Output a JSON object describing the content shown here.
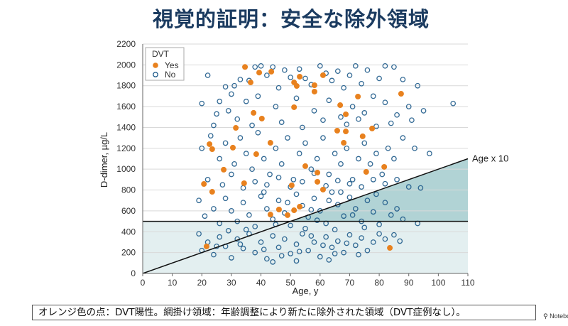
{
  "slide": {
    "title": "視覚的証明：安全な除外領域",
    "caption": "オレンジ色の点：DVT陽性。網掛け領域：年齢調整により新たに除外された領域（DVT症例なし）。",
    "watermark": "Notebo"
  },
  "chart_data": {
    "type": "scatter",
    "title": "",
    "xlabel": "Age, y",
    "ylabel": "D-dimer, µg/L",
    "xlim": [
      0,
      110
    ],
    "ylim": [
      0,
      2200
    ],
    "xticks": [
      0,
      10,
      20,
      30,
      40,
      50,
      60,
      70,
      80,
      90,
      100,
      110
    ],
    "yticks": [
      0,
      200,
      400,
      600,
      800,
      1000,
      1200,
      1400,
      1600,
      1800,
      2000,
      2200
    ],
    "grid": "horizontal",
    "legend": {
      "title": "DVT",
      "placement": "top-left",
      "entries": [
        "Yes",
        "No"
      ]
    },
    "colors": {
      "yes": "#e8811e",
      "no": "#1d5a8a",
      "shade_light": "#e3eff0",
      "shade_dark": "#b1d3d5"
    },
    "reference_lines": [
      {
        "type": "horizontal",
        "y": 500,
        "label": ""
      },
      {
        "type": "line",
        "slope": 10,
        "intercept": 0,
        "label": "Age x 10"
      }
    ],
    "shaded_regions": [
      {
        "name": "below-fixed-cutoff",
        "description": "D-dimer < 500",
        "shade": "light"
      },
      {
        "name": "age-adjusted-exclusion",
        "description": "500 ≤ D-dimer < Age x 10",
        "shade": "dark"
      }
    ],
    "series": [
      {
        "name": "Yes",
        "marker": "filled",
        "points": [
          [
            34.6,
            1980
          ],
          [
            39.4,
            1926
          ],
          [
            43.5,
            1935
          ],
          [
            36.5,
            1832
          ],
          [
            53.1,
            1887
          ],
          [
            51.2,
            1832
          ],
          [
            52.1,
            1798
          ],
          [
            61.0,
            1901
          ],
          [
            58.1,
            1805
          ],
          [
            58.1,
            1744
          ],
          [
            72.8,
            1696
          ],
          [
            87.4,
            1723
          ],
          [
            51.2,
            1594
          ],
          [
            66.8,
            1614
          ],
          [
            37.5,
            1540
          ],
          [
            40.3,
            1485
          ],
          [
            68.7,
            1526
          ],
          [
            31.5,
            1396
          ],
          [
            65.8,
            1369
          ],
          [
            68.7,
            1362
          ],
          [
            77.6,
            1390
          ],
          [
            74.4,
            1315
          ],
          [
            22.6,
            1240
          ],
          [
            23.5,
            1192
          ],
          [
            43.2,
            1253
          ],
          [
            30.5,
            1206
          ],
          [
            68.0,
            1253
          ],
          [
            38.4,
            1144
          ],
          [
            27.4,
            995
          ],
          [
            34.3,
            865
          ],
          [
            20.7,
            858
          ],
          [
            23.5,
            783
          ],
          [
            55.0,
            1029
          ],
          [
            59.1,
            967
          ],
          [
            59.1,
            879
          ],
          [
            50.4,
            845
          ],
          [
            61.0,
            804
          ],
          [
            75.6,
            974
          ],
          [
            81.7,
            1022
          ],
          [
            46.1,
            613
          ],
          [
            43.2,
            565
          ],
          [
            49.0,
            559
          ],
          [
            51.2,
            606
          ],
          [
            53.1,
            640
          ],
          [
            21.6,
            259
          ],
          [
            83.6,
            245
          ]
        ]
      },
      {
        "name": "No",
        "marker": "open",
        "points": [
          [
            22,
            1900
          ],
          [
            25,
            1530
          ],
          [
            28,
            1790
          ],
          [
            30,
            1720
          ],
          [
            31,
            1800
          ],
          [
            33,
            1860
          ],
          [
            36,
            1850
          ],
          [
            38,
            1980
          ],
          [
            40,
            1990
          ],
          [
            42,
            1900
          ],
          [
            44,
            1980
          ],
          [
            46,
            1780
          ],
          [
            48,
            1950
          ],
          [
            50,
            1880
          ],
          [
            53,
            1960
          ],
          [
            55,
            1870
          ],
          [
            57,
            1810
          ],
          [
            60,
            1990
          ],
          [
            62,
            1920
          ],
          [
            64,
            1850
          ],
          [
            66,
            1940
          ],
          [
            68,
            1780
          ],
          [
            70,
            1900
          ],
          [
            72,
            1990
          ],
          [
            74,
            1820
          ],
          [
            76,
            1950
          ],
          [
            80,
            1870
          ],
          [
            82,
            1990
          ],
          [
            85,
            1980
          ],
          [
            88,
            1860
          ],
          [
            93,
            1800
          ],
          [
            105,
            1630
          ],
          [
            20,
            1630
          ],
          [
            26,
            1650
          ],
          [
            29,
            1560
          ],
          [
            35,
            1650
          ],
          [
            39,
            1700
          ],
          [
            45,
            1600
          ],
          [
            52,
            1680
          ],
          [
            58,
            1560
          ],
          [
            63,
            1660
          ],
          [
            67,
            1500
          ],
          [
            71,
            1600
          ],
          [
            75,
            1540
          ],
          [
            78,
            1700
          ],
          [
            82,
            1640
          ],
          [
            86,
            1520
          ],
          [
            90,
            1600
          ],
          [
            95,
            1560
          ],
          [
            24,
            1420
          ],
          [
            32,
            1480
          ],
          [
            37,
            1420
          ],
          [
            47,
            1450
          ],
          [
            54,
            1400
          ],
          [
            61,
            1470
          ],
          [
            69,
            1430
          ],
          [
            73,
            1480
          ],
          [
            79,
            1410
          ],
          [
            84,
            1440
          ],
          [
            91,
            1470
          ],
          [
            20,
            1200
          ],
          [
            23,
            1320
          ],
          [
            26,
            1100
          ],
          [
            28,
            1250
          ],
          [
            31,
            1050
          ],
          [
            33,
            1300
          ],
          [
            35,
            1150
          ],
          [
            37,
            1000
          ],
          [
            39,
            1350
          ],
          [
            41,
            1100
          ],
          [
            43,
            950
          ],
          [
            45,
            1200
          ],
          [
            47,
            1050
          ],
          [
            49,
            1300
          ],
          [
            51,
            900
          ],
          [
            53,
            1150
          ],
          [
            55,
            1250
          ],
          [
            57,
            1000
          ],
          [
            59,
            1100
          ],
          [
            61,
            1300
          ],
          [
            63,
            950
          ],
          [
            65,
            1150
          ],
          [
            67,
            1050
          ],
          [
            69,
            1200
          ],
          [
            71,
            900
          ],
          [
            73,
            1100
          ],
          [
            75,
            1250
          ],
          [
            77,
            1050
          ],
          [
            79,
            1150
          ],
          [
            81,
            950
          ],
          [
            83,
            1200
          ],
          [
            85,
            1100
          ],
          [
            88,
            1300
          ],
          [
            92,
            1200
          ],
          [
            97,
            1150
          ],
          [
            22,
            900
          ],
          [
            27,
            850
          ],
          [
            30,
            950
          ],
          [
            34,
            820
          ],
          [
            38,
            880
          ],
          [
            42,
            850
          ],
          [
            46,
            920
          ],
          [
            50,
            830
          ],
          [
            54,
            880
          ],
          [
            58,
            960
          ],
          [
            62,
            840
          ],
          [
            66,
            890
          ],
          [
            70,
            860
          ],
          [
            74,
            830
          ],
          [
            78,
            900
          ],
          [
            82,
            860
          ],
          [
            86,
            900
          ],
          [
            90,
            830
          ],
          [
            94,
            820
          ],
          [
            19,
            700
          ],
          [
            21,
            550
          ],
          [
            24,
            620
          ],
          [
            26,
            480
          ],
          [
            28,
            720
          ],
          [
            30,
            600
          ],
          [
            32,
            500
          ],
          [
            34,
            680
          ],
          [
            36,
            560
          ],
          [
            38,
            450
          ],
          [
            40,
            740
          ],
          [
            42,
            620
          ],
          [
            44,
            520
          ],
          [
            46,
            700
          ],
          [
            48,
            580
          ],
          [
            50,
            460
          ],
          [
            52,
            760
          ],
          [
            54,
            650
          ],
          [
            56,
            540
          ],
          [
            58,
            720
          ],
          [
            60,
            600
          ],
          [
            62,
            480
          ],
          [
            64,
            780
          ],
          [
            66,
            660
          ],
          [
            68,
            550
          ],
          [
            70,
            730
          ],
          [
            72,
            620
          ],
          [
            74,
            500
          ],
          [
            76,
            700
          ],
          [
            78,
            590
          ],
          [
            80,
            470
          ],
          [
            82,
            680
          ],
          [
            84,
            560
          ],
          [
            86,
            620
          ],
          [
            88,
            520
          ],
          [
            93,
            480
          ],
          [
            45,
            470
          ],
          [
            55,
            430
          ],
          [
            65,
            420
          ],
          [
            75,
            440
          ],
          [
            41,
            780
          ],
          [
            49,
            680
          ],
          [
            57,
            610
          ],
          [
            63,
            700
          ],
          [
            71,
            560
          ],
          [
            79,
            760
          ],
          [
            35,
            420
          ],
          [
            29,
            410
          ],
          [
            67,
            780
          ],
          [
            59,
            510
          ],
          [
            19,
            380
          ],
          [
            20,
            220
          ],
          [
            22,
            300
          ],
          [
            24,
            180
          ],
          [
            26,
            350
          ],
          [
            28,
            260
          ],
          [
            30,
            150
          ],
          [
            32,
            330
          ],
          [
            34,
            240
          ],
          [
            36,
            380
          ],
          [
            38,
            200
          ],
          [
            40,
            300
          ],
          [
            42,
            140
          ],
          [
            44,
            360
          ],
          [
            46,
            250
          ],
          [
            48,
            330
          ],
          [
            50,
            190
          ],
          [
            52,
            280
          ],
          [
            54,
            380
          ],
          [
            56,
            220
          ],
          [
            58,
            300
          ],
          [
            60,
            160
          ],
          [
            62,
            350
          ],
          [
            64,
            250
          ],
          [
            66,
            310
          ],
          [
            68,
            200
          ],
          [
            70,
            370
          ],
          [
            72,
            270
          ],
          [
            74,
            340
          ],
          [
            76,
            220
          ],
          [
            78,
            300
          ],
          [
            80,
            380
          ],
          [
            82,
            330
          ],
          [
            85,
            370
          ],
          [
            87,
            310
          ],
          [
            41,
            230
          ],
          [
            47,
            170
          ],
          [
            53,
            210
          ],
          [
            57,
            360
          ],
          [
            61,
            270
          ],
          [
            65,
            190
          ],
          [
            69,
            290
          ],
          [
            73,
            180
          ],
          [
            33,
            280
          ],
          [
            25,
            260
          ],
          [
            44,
            110
          ],
          [
            52,
            120
          ],
          [
            63,
            130
          ]
        ]
      }
    ]
  }
}
